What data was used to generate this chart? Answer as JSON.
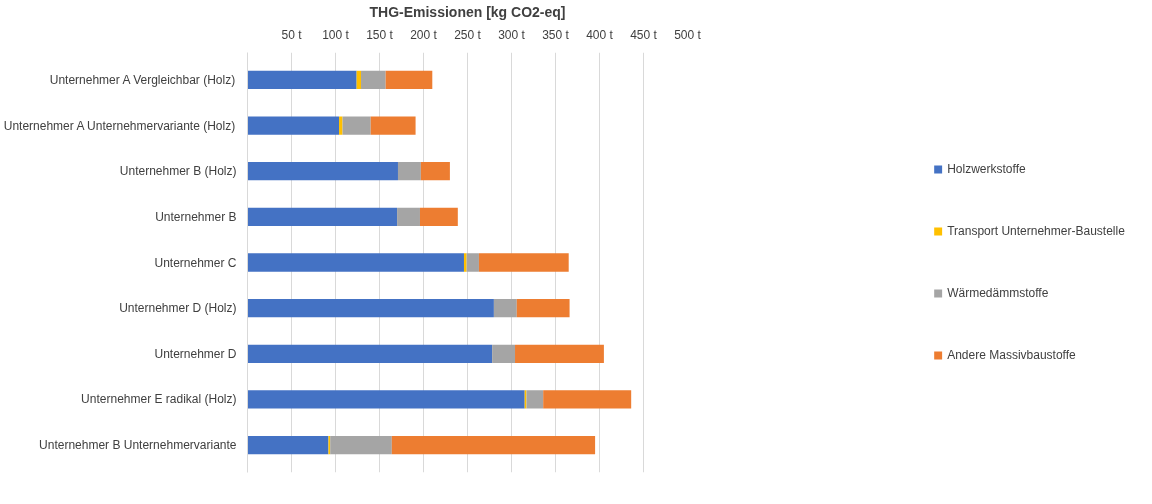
{
  "chart_data": {
    "type": "bar",
    "orientation": "horizontal",
    "stacked": true,
    "xlabel": "THG-Emissionen [kg CO2-eq]",
    "categories": [
      "Unternehmer A Vergleichbar (Holz)",
      "Unternehmer A Unternehmervariante (Holz)",
      "Unternehmer B (Holz)",
      "Unternehmer B",
      "Unternehmer C",
      "Unternehmer D (Holz)",
      "Unternehmer D",
      "Unternehmer E radikal (Holz)",
      "Unternehmer B Unternehmervariante"
    ],
    "series": [
      {
        "name": "Holzwerkstoffe",
        "color": "#4472c4",
        "values": [
          124,
          104,
          171,
          170,
          246,
          280,
          278,
          315,
          92
        ]
      },
      {
        "name": "Transport Unternehmer-Baustelle",
        "color": "#ffc000",
        "values": [
          5,
          4,
          0,
          0,
          3,
          0,
          0,
          2,
          2
        ]
      },
      {
        "name": "Wärmedämmstoffe",
        "color": "#a5a5a5",
        "values": [
          28,
          32,
          26,
          26,
          14,
          26,
          26,
          19,
          70
        ]
      },
      {
        "name": "Andere Massivbaustoffe",
        "color": "#ed7d31",
        "values": [
          53,
          51,
          33,
          43,
          102,
          60,
          101,
          100,
          231
        ]
      }
    ],
    "xlim": [
      0,
      500
    ],
    "xticks": [
      {
        "value": 50,
        "label": "50 t"
      },
      {
        "value": 100,
        "label": "100 t"
      },
      {
        "value": 150,
        "label": "150 t"
      },
      {
        "value": 200,
        "label": "200 t"
      },
      {
        "value": 250,
        "label": "250 t"
      },
      {
        "value": 300,
        "label": "300 t"
      },
      {
        "value": 350,
        "label": "350 t"
      },
      {
        "value": 400,
        "label": "400 t"
      },
      {
        "value": 450,
        "label": "450 t"
      },
      {
        "value": 500,
        "label": "500 t"
      }
    ],
    "grid": "x",
    "legend": "right"
  }
}
